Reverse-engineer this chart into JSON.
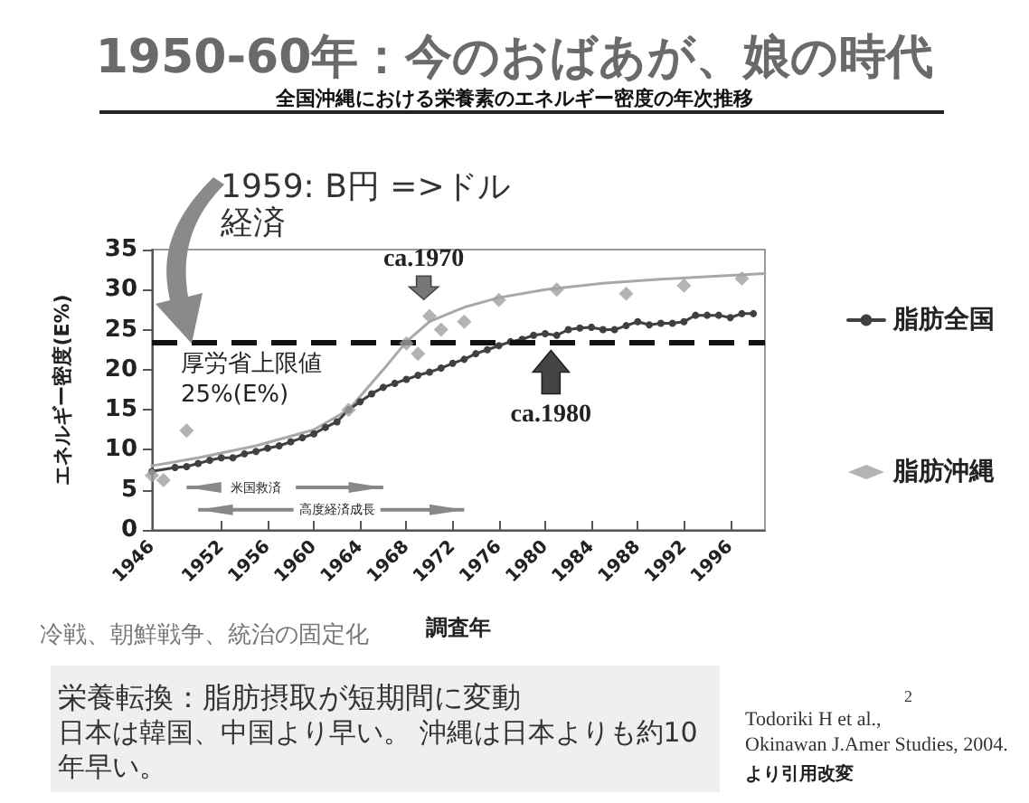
{
  "chart_data": {
    "type": "line",
    "title": "1950-60年：今のおばあが、娘の時代",
    "subtitle": "全国沖縄における栄養素のエネルギー密度の年次推移",
    "xlabel": "調査年",
    "ylabel": "エネルギー密度(E%)",
    "xlim": [
      1946,
      1999
    ],
    "xticks": [
      1946,
      1952,
      1956,
      1960,
      1964,
      1968,
      1972,
      1976,
      1980,
      1984,
      1988,
      1992,
      1996
    ],
    "ylim": [
      0,
      35
    ],
    "yticks": [
      0,
      5,
      10,
      15,
      20,
      25,
      30,
      35
    ],
    "grid": false,
    "legend": "right",
    "series": [
      {
        "name": "脂肪全国",
        "marker": "circle",
        "color": "#404040",
        "x": [
          1946,
          1948,
          1949,
          1950,
          1951,
          1952,
          1953,
          1954,
          1955,
          1956,
          1957,
          1958,
          1959,
          1960,
          1961,
          1962,
          1963,
          1964,
          1965,
          1966,
          1967,
          1968,
          1969,
          1970,
          1971,
          1972,
          1973,
          1974,
          1975,
          1976,
          1977,
          1978,
          1979,
          1980,
          1981,
          1982,
          1983,
          1984,
          1985,
          1986,
          1987,
          1988,
          1989,
          1990,
          1991,
          1992,
          1993,
          1994,
          1995,
          1996,
          1997,
          1998
        ],
        "values": [
          7.3,
          7.8,
          7.9,
          8.3,
          8.7,
          9.0,
          9.0,
          9.5,
          9.8,
          10.2,
          10.5,
          11.0,
          11.5,
          12.0,
          12.8,
          13.5,
          15.0,
          16.0,
          17.0,
          17.8,
          18.3,
          18.8,
          19.3,
          19.7,
          20.2,
          20.8,
          21.3,
          22.0,
          22.5,
          23.0,
          23.5,
          23.8,
          24.3,
          24.5,
          24.3,
          25.0,
          25.2,
          25.3,
          25.0,
          25.0,
          25.5,
          26.0,
          25.6,
          25.8,
          25.8,
          26.0,
          26.8,
          26.8,
          26.8,
          26.5,
          27.0,
          27.0
        ]
      },
      {
        "name": "脂肪沖縄",
        "type": "scatter",
        "marker": "diamond",
        "color": "#a0a0a0",
        "x": [
          1946,
          1947,
          1949,
          1963,
          1968,
          1969,
          1970,
          1971,
          1973,
          1976,
          1981,
          1987,
          1992,
          1997
        ],
        "values": [
          6.8,
          6.2,
          12.4,
          15.0,
          23.3,
          22.0,
          26.7,
          25.0,
          26.0,
          28.7,
          30.0,
          29.5,
          30.5,
          31.4
        ]
      },
      {
        "type": "line",
        "marker": "none",
        "color": "#a8a8a8",
        "x": [
          1946,
          1950,
          1955,
          1960,
          1963,
          1966,
          1968,
          1970,
          1973,
          1976,
          1980,
          1985,
          1990,
          1995,
          1999
        ],
        "values": [
          8,
          9,
          10.5,
          12.5,
          15,
          20,
          23.5,
          26,
          27.8,
          29,
          30,
          30.8,
          31.3,
          31.7,
          32
        ]
      }
    ],
    "ref_lines": [
      {
        "axis": "y",
        "value": 23.5,
        "label": "厚労省上限値\n25%(E%)",
        "color": "#111111",
        "line_style": "dashed"
      }
    ],
    "annotations": [
      "1959: B円 =>ドル経済",
      "ca.1970",
      "ca.1980",
      "米国救済",
      "高度経済成長",
      "冷戦、朝鮮戦争、統治の固定化",
      "栄養転換：脂肪摂取が短期間に変動",
      "日本は韓国、中国より早い。 沖縄は日本よりも約10年早い。",
      "Todoriki H et al.,\nOkinawan J.Amer Studies, 2004.",
      "より引用改変",
      "2"
    ]
  }
}
